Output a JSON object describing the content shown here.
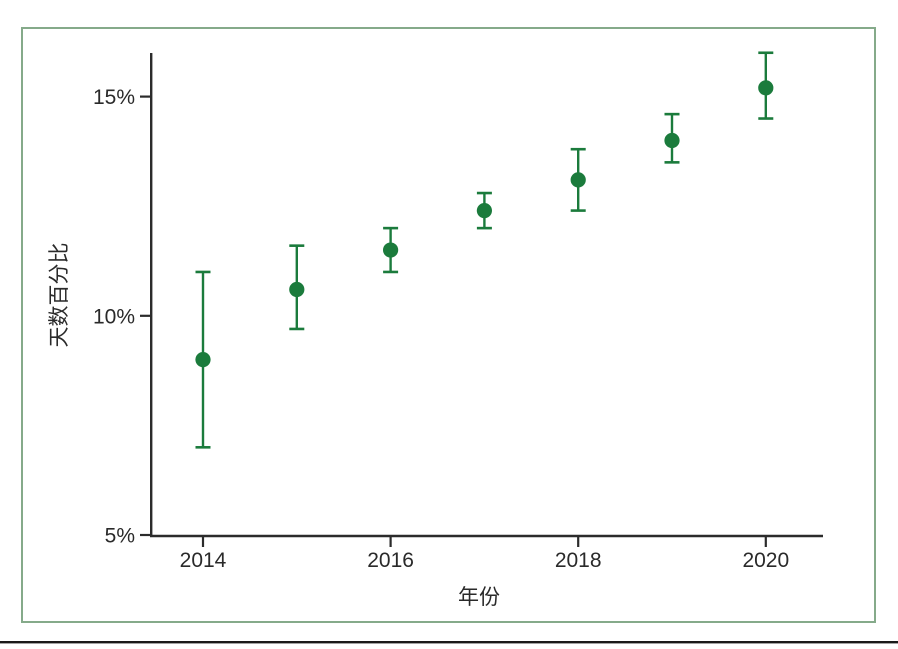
{
  "figure": {
    "frame_color": "#85aa8a",
    "bottom_rule_color": "#1a1a1a",
    "background": "#ffffff"
  },
  "chart_data": {
    "type": "scatter",
    "title": "",
    "xlabel": "年份",
    "ylabel": "天数百分比",
    "x": [
      2014,
      2015,
      2016,
      2017,
      2018,
      2019,
      2020
    ],
    "series": [
      {
        "name": "天数百分比",
        "values": [
          9.0,
          10.6,
          11.5,
          12.4,
          13.1,
          14.0,
          15.2
        ],
        "ci_low": [
          7.0,
          9.7,
          11.0,
          12.0,
          12.4,
          13.5,
          14.5
        ],
        "ci_high": [
          11.0,
          11.6,
          12.0,
          12.8,
          13.8,
          14.6,
          16.0
        ]
      }
    ],
    "error_bars": true,
    "grid": false,
    "legend": "none",
    "xlim": [
      2013.4,
      2020.6
    ],
    "ylim": [
      5,
      16
    ],
    "yticks": [
      {
        "value": 5,
        "label": "5%"
      },
      {
        "value": 10,
        "label": "10%"
      },
      {
        "value": 15,
        "label": "15%"
      }
    ],
    "xticks": [
      {
        "value": 2014,
        "label": "2014"
      },
      {
        "value": 2016,
        "label": "2016"
      },
      {
        "value": 2018,
        "label": "2018"
      },
      {
        "value": 2020,
        "label": "2020"
      }
    ],
    "colors": {
      "point": "#1b7b3c",
      "axis": "#2b2b2b",
      "tick_text": "#2a2a2a"
    }
  }
}
